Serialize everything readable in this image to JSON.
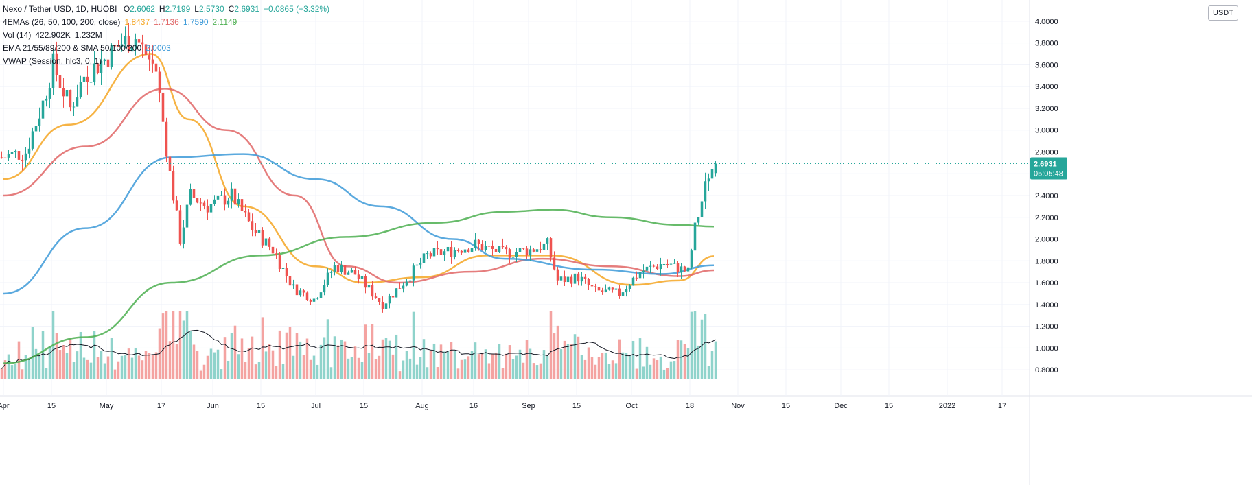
{
  "header": {
    "symbol_line": "Nexo / Tether USD, 1D, HUOBI",
    "ohlc": [
      {
        "k": "O",
        "v": "2.6062"
      },
      {
        "k": "H",
        "v": "2.7199"
      },
      {
        "k": "L",
        "v": "2.5730"
      },
      {
        "k": "C",
        "v": "2.6931"
      },
      {
        "k": "",
        "v": "+0.0865 (+3.32%)"
      }
    ]
  },
  "indicators": [
    {
      "label": "4EMAs (26, 50, 100, 200, close)",
      "values": [
        {
          "v": "1.8437",
          "color": "#f5a623"
        },
        {
          "v": "1.7136",
          "color": "#e06666"
        },
        {
          "v": "1.7590",
          "color": "#3d9ad8"
        },
        {
          "v": "2.1149",
          "color": "#4caf50"
        }
      ]
    },
    {
      "label": "Vol (14)",
      "values": [
        {
          "v": "422.902K",
          "color": "#131722"
        },
        {
          "v": "1.232M",
          "color": "#131722"
        }
      ]
    },
    {
      "label": "EMA 21/55/89/200 & SMA 50/100/200",
      "values": [
        {
          "v": "2.0003",
          "color": "#3d9ad8"
        }
      ]
    },
    {
      "label": "VWAP (Session, hlc3, 0, 1)",
      "values": []
    }
  ],
  "price_axis": {
    "unit": "USDT",
    "ticks": [
      "4.0000",
      "3.8000",
      "3.6000",
      "3.4000",
      "3.2000",
      "3.0000",
      "2.8000",
      "2.6000",
      "2.4000",
      "2.2000",
      "2.0000",
      "1.8000",
      "1.6000",
      "1.4000",
      "1.2000",
      "1.0000",
      "0.8000"
    ]
  },
  "last_price": {
    "price": "2.6931",
    "countdown": "05:05:48",
    "color": "#26a69a"
  },
  "colors": {
    "up": "#26a69a",
    "down": "#ef5350",
    "vol_up": "#8fd3cb",
    "vol_down": "#f4a3a1"
  },
  "chart_data": {
    "type": "candlestick",
    "x_ticks": [
      {
        "label": "Apr",
        "date": "2021-04-01"
      },
      {
        "label": "15",
        "date": "2021-04-15"
      },
      {
        "label": "May",
        "date": "2021-05-01"
      },
      {
        "label": "17",
        "date": "2021-05-17"
      },
      {
        "label": "Jun",
        "date": "2021-06-01"
      },
      {
        "label": "15",
        "date": "2021-06-15"
      },
      {
        "label": "Jul",
        "date": "2021-07-01"
      },
      {
        "label": "15",
        "date": "2021-07-15"
      },
      {
        "label": "Aug",
        "date": "2021-08-01"
      },
      {
        "label": "16",
        "date": "2021-08-16"
      },
      {
        "label": "Sep",
        "date": "2021-09-01"
      },
      {
        "label": "15",
        "date": "2021-09-15"
      },
      {
        "label": "Oct",
        "date": "2021-10-01"
      },
      {
        "label": "18",
        "date": "2021-10-18"
      },
      {
        "label": "Nov",
        "date": "2021-11-01"
      },
      {
        "label": "15",
        "date": "2021-11-15"
      },
      {
        "label": "Dec",
        "date": "2021-12-01"
      },
      {
        "label": "15",
        "date": "2021-12-15"
      },
      {
        "label": "2022",
        "date": "2022-01-01"
      },
      {
        "label": "17",
        "date": "2022-01-17"
      }
    ],
    "y_range": [
      0.7,
      4.1
    ],
    "close_anchors": [
      [
        "2021-03-31",
        2.75
      ],
      [
        "2021-04-07",
        2.8
      ],
      [
        "2021-04-12",
        3.25
      ],
      [
        "2021-04-15",
        3.6
      ],
      [
        "2021-04-20",
        3.2
      ],
      [
        "2021-04-24",
        3.5
      ],
      [
        "2021-04-30",
        3.65
      ],
      [
        "2021-05-05",
        3.8
      ],
      [
        "2021-05-09",
        3.85
      ],
      [
        "2021-05-12",
        3.7
      ],
      [
        "2021-05-15",
        3.55
      ],
      [
        "2021-05-19",
        2.6
      ],
      [
        "2021-05-22",
        2.0
      ],
      [
        "2021-05-25",
        2.4
      ],
      [
        "2021-05-30",
        2.3
      ],
      [
        "2021-06-06",
        2.4
      ],
      [
        "2021-06-12",
        2.1
      ],
      [
        "2021-06-18",
        1.9
      ],
      [
        "2021-06-24",
        1.55
      ],
      [
        "2021-06-30",
        1.45
      ],
      [
        "2021-07-06",
        1.75
      ],
      [
        "2021-07-12",
        1.68
      ],
      [
        "2021-07-20",
        1.4
      ],
      [
        "2021-07-26",
        1.6
      ],
      [
        "2021-08-02",
        1.85
      ],
      [
        "2021-08-10",
        1.9
      ],
      [
        "2021-08-16",
        1.95
      ],
      [
        "2021-08-24",
        1.87
      ],
      [
        "2021-09-01",
        1.9
      ],
      [
        "2021-09-06",
        1.95
      ],
      [
        "2021-09-09",
        1.62
      ],
      [
        "2021-09-15",
        1.65
      ],
      [
        "2021-09-20",
        1.52
      ],
      [
        "2021-09-27",
        1.5
      ],
      [
        "2021-10-03",
        1.7
      ],
      [
        "2021-10-10",
        1.78
      ],
      [
        "2021-10-17",
        1.7
      ],
      [
        "2021-10-19",
        2.1
      ],
      [
        "2021-10-21",
        2.35
      ],
      [
        "2021-10-23",
        2.6
      ],
      [
        "2021-10-25",
        2.6931
      ]
    ],
    "ema_series": [
      {
        "color": "#f5a623",
        "points": [
          [
            "2021-04-01",
            2.55
          ],
          [
            "2021-04-20",
            3.05
          ],
          [
            "2021-05-14",
            3.7
          ],
          [
            "2021-05-25",
            3.1
          ],
          [
            "2021-06-10",
            2.3
          ],
          [
            "2021-07-01",
            1.75
          ],
          [
            "2021-07-15",
            1.6
          ],
          [
            "2021-08-01",
            1.65
          ],
          [
            "2021-08-20",
            1.85
          ],
          [
            "2021-09-08",
            1.85
          ],
          [
            "2021-10-01",
            1.58
          ],
          [
            "2021-10-15",
            1.62
          ],
          [
            "2021-10-25",
            1.8437
          ]
        ]
      },
      {
        "color": "#e06666",
        "points": [
          [
            "2021-04-01",
            2.4
          ],
          [
            "2021-04-25",
            2.85
          ],
          [
            "2021-05-18",
            3.38
          ],
          [
            "2021-06-05",
            3.0
          ],
          [
            "2021-06-25",
            2.4
          ],
          [
            "2021-07-10",
            1.75
          ],
          [
            "2021-07-25",
            1.6
          ],
          [
            "2021-08-15",
            1.7
          ],
          [
            "2021-09-05",
            1.82
          ],
          [
            "2021-09-25",
            1.75
          ],
          [
            "2021-10-15",
            1.66
          ],
          [
            "2021-10-25",
            1.7136
          ]
        ]
      },
      {
        "color": "#3d9ad8",
        "points": [
          [
            "2021-04-01",
            1.5
          ],
          [
            "2021-04-25",
            2.1
          ],
          [
            "2021-05-20",
            2.75
          ],
          [
            "2021-06-10",
            2.78
          ],
          [
            "2021-07-01",
            2.55
          ],
          [
            "2021-07-20",
            2.3
          ],
          [
            "2021-08-10",
            2.0
          ],
          [
            "2021-08-25",
            1.82
          ],
          [
            "2021-09-20",
            1.72
          ],
          [
            "2021-10-10",
            1.68
          ],
          [
            "2021-10-25",
            1.759
          ]
        ]
      },
      {
        "color": "#4caf50",
        "points": [
          [
            "2021-04-01",
            0.86
          ],
          [
            "2021-04-25",
            1.1
          ],
          [
            "2021-05-20",
            1.6
          ],
          [
            "2021-06-15",
            1.85
          ],
          [
            "2021-07-10",
            2.02
          ],
          [
            "2021-08-05",
            2.15
          ],
          [
            "2021-08-25",
            2.25
          ],
          [
            "2021-09-08",
            2.27
          ],
          [
            "2021-09-25",
            2.2
          ],
          [
            "2021-10-15",
            2.13
          ],
          [
            "2021-10-25",
            2.1149
          ]
        ]
      }
    ]
  }
}
